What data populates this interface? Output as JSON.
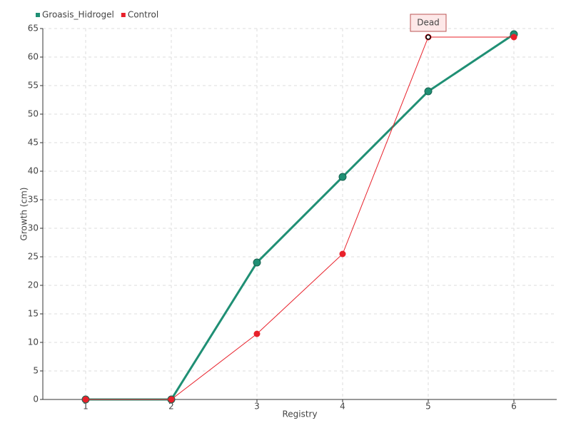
{
  "chart_data": {
    "type": "line",
    "x": [
      1,
      2,
      3,
      4,
      5,
      6
    ],
    "xlim": [
      0.5,
      6.5
    ],
    "xticks": [
      1,
      2,
      3,
      4,
      5,
      6
    ],
    "ylim": [
      0,
      65
    ],
    "yticks": [
      0,
      5,
      10,
      15,
      20,
      25,
      30,
      35,
      40,
      45,
      50,
      55,
      60,
      65
    ],
    "x_label": "Registry",
    "y_label": "Growth (cm)",
    "grid": true,
    "legend": "top-left",
    "series": [
      {
        "name": "Groasis_Hidrogel",
        "color": "#1f8f74",
        "values": [
          0,
          0,
          24,
          39,
          54,
          64
        ]
      },
      {
        "name": "Control",
        "color": "#e8202a",
        "values": [
          0,
          0,
          11.5,
          25.5,
          63.5,
          63.5
        ]
      }
    ],
    "annotations": [
      {
        "text": "Dead",
        "x": 5,
        "y": 63.5
      }
    ]
  }
}
